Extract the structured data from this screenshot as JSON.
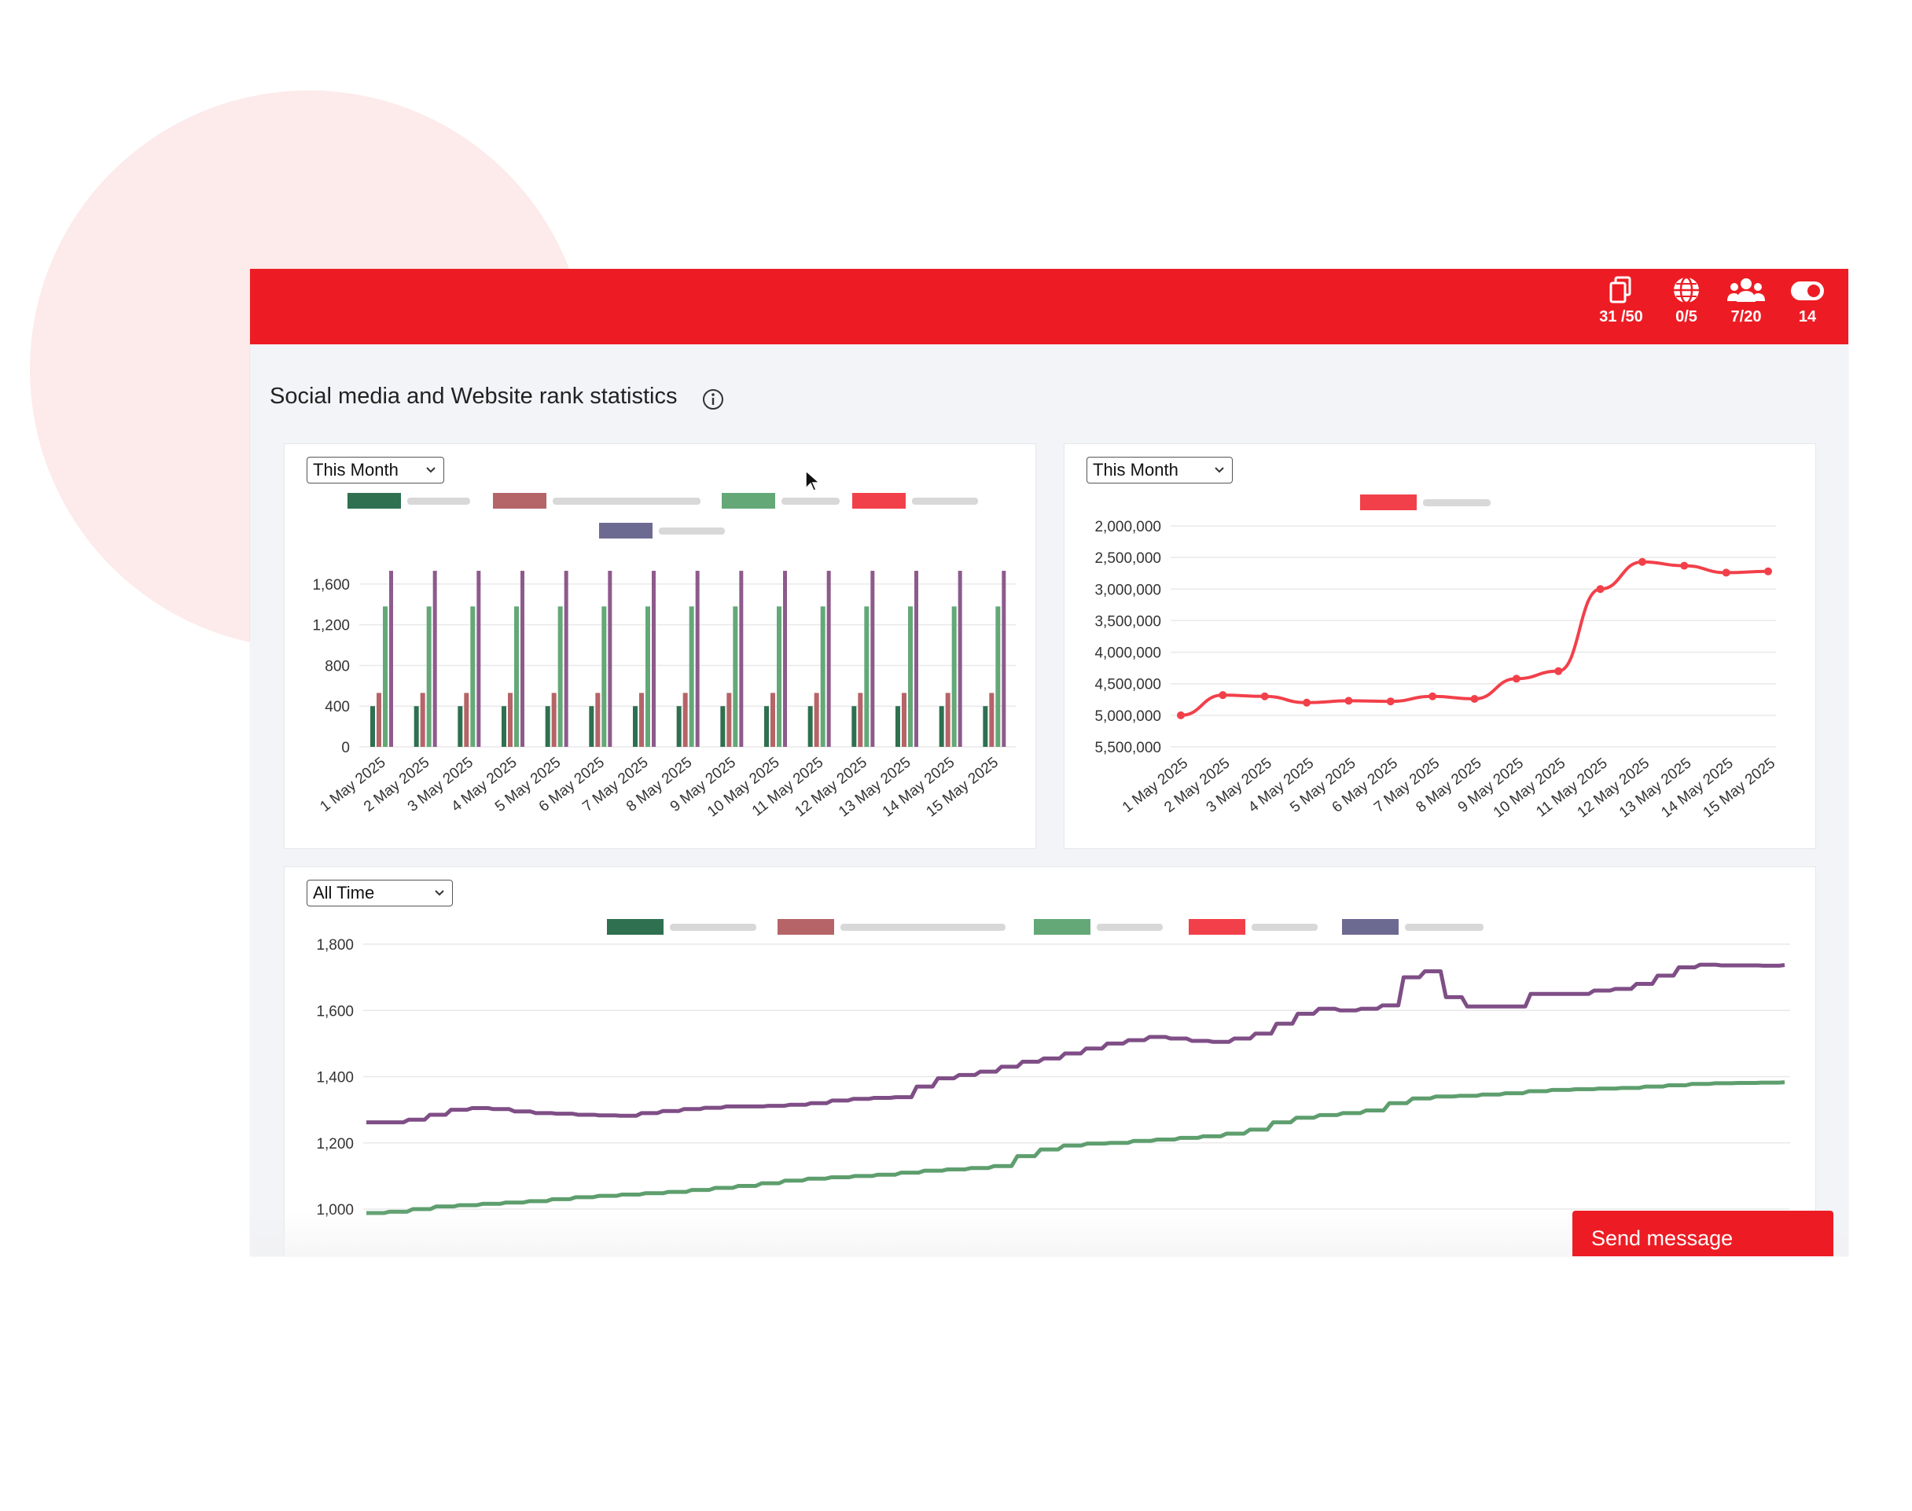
{
  "header": {
    "stats": [
      {
        "icon": "copy-pages-icon",
        "value": "31 /50"
      },
      {
        "icon": "globe-icon",
        "value": "0/5"
      },
      {
        "icon": "users-icon",
        "value": "7/20"
      },
      {
        "icon": "toggle-icon",
        "value": "14"
      }
    ],
    "accent": "#ed1c24"
  },
  "page_title": "Social media and Website rank statistics",
  "colors": {
    "dark_green": "#2e7050",
    "rose": "#b56468",
    "green": "#64a878",
    "red": "#f2404a",
    "purple": "#6d6a92",
    "line_purple": "#7f4e86",
    "line_green": "#5e9e6e"
  },
  "filters": {
    "bar_chart": "This Month",
    "rank_chart": "This Month",
    "history_chart": "All Time"
  },
  "send_message": "Send message",
  "chart_data": [
    {
      "type": "bar",
      "categories": [
        "1 May 2025",
        "2 May 2025",
        "3 May 2025",
        "4 May 2025",
        "5 May 2025",
        "6 May 2025",
        "7 May 2025",
        "8 May 2025",
        "9 May 2025",
        "10 May 2025",
        "11 May 2025",
        "12 May 2025",
        "13 May 2025",
        "14 May 2025",
        "15 May 2025"
      ],
      "series": [
        {
          "color": "#2e7050",
          "values": [
            400,
            400,
            400,
            400,
            400,
            400,
            400,
            400,
            400,
            400,
            400,
            400,
            400,
            400,
            400
          ]
        },
        {
          "color": "#b56468",
          "values": [
            530,
            530,
            530,
            530,
            530,
            530,
            530,
            530,
            530,
            530,
            530,
            530,
            530,
            530,
            530
          ]
        },
        {
          "color": "#64a878",
          "values": [
            1380,
            1380,
            1380,
            1380,
            1380,
            1380,
            1380,
            1380,
            1380,
            1380,
            1380,
            1380,
            1380,
            1380,
            1380
          ]
        },
        {
          "color": "#8e5a8c",
          "values": [
            1730,
            1730,
            1730,
            1730,
            1730,
            1730,
            1730,
            1730,
            1730,
            1730,
            1730,
            1730,
            1730,
            1730,
            1730
          ]
        }
      ],
      "yticks": [
        "0",
        "400",
        "800",
        "1,200",
        "1,600"
      ],
      "ylim": [
        0,
        1800
      ],
      "legend": [
        "#2e7050",
        "#b56468",
        "#64a878",
        "#f2404a",
        "#6d6a92"
      ],
      "grid": true
    },
    {
      "type": "line",
      "categories": [
        "1 May 2025",
        "2 May 2025",
        "3 May 2025",
        "4 May 2025",
        "5 May 2025",
        "6 May 2025",
        "7 May 2025",
        "8 May 2025",
        "9 May 2025",
        "10 May 2025",
        "11 May 2025",
        "12 May 2025",
        "13 May 2025",
        "14 May 2025",
        "15 May 2025"
      ],
      "series": [
        {
          "color": "#f2404a",
          "values": [
            5000000,
            4680000,
            4700000,
            4800000,
            4770000,
            4780000,
            4700000,
            4740000,
            4420000,
            4300000,
            3000000,
            2570000,
            2630000,
            2740000,
            2720000
          ]
        }
      ],
      "yticks": [
        "2,000,000",
        "2,500,000",
        "3,000,000",
        "3,500,000",
        "4,000,000",
        "4,500,000",
        "5,000,000",
        "5,500,000"
      ],
      "reversed_axis": true,
      "legend": [
        "#f2404a"
      ],
      "grid": true
    },
    {
      "type": "line",
      "series": [
        {
          "color": "#7f4e86",
          "values": [
            1262,
            1262,
            1270,
            1285,
            1300,
            1305,
            1302,
            1295,
            1290,
            1288,
            1285,
            1283,
            1282,
            1290,
            1296,
            1302,
            1306,
            1310,
            1310,
            1312,
            1315,
            1320,
            1328,
            1333,
            1336,
            1338,
            1370,
            1395,
            1405,
            1415,
            1430,
            1445,
            1455,
            1470,
            1485,
            1500,
            1510,
            1520,
            1515,
            1508,
            1505,
            1515,
            1530,
            1560,
            1590,
            1605,
            1600,
            1605,
            1615,
            1700,
            1718,
            1640,
            1612,
            1612,
            1612,
            1650,
            1650,
            1650,
            1660,
            1665,
            1680,
            1705,
            1730,
            1738,
            1736,
            1736,
            1735,
            1737
          ]
        },
        {
          "color": "#5e9e6e",
          "values": [
            988,
            992,
            1000,
            1008,
            1012,
            1016,
            1020,
            1024,
            1030,
            1036,
            1040,
            1044,
            1048,
            1052,
            1058,
            1064,
            1070,
            1078,
            1086,
            1092,
            1096,
            1100,
            1104,
            1110,
            1116,
            1120,
            1124,
            1130,
            1160,
            1180,
            1192,
            1198,
            1200,
            1206,
            1210,
            1215,
            1220,
            1228,
            1240,
            1262,
            1276,
            1284,
            1290,
            1298,
            1320,
            1334,
            1340,
            1342,
            1346,
            1350,
            1356,
            1360,
            1362,
            1364,
            1366,
            1370,
            1374,
            1378,
            1380,
            1381,
            1382,
            1383
          ]
        }
      ],
      "yticks": [
        "1,000",
        "1,200",
        "1,400",
        "1,600",
        "1,800"
      ],
      "ylim": [
        950,
        1800
      ],
      "legend": [
        "#2e7050",
        "#b56468",
        "#64a878",
        "#f2404a",
        "#6d6a92"
      ],
      "grid": true
    }
  ]
}
